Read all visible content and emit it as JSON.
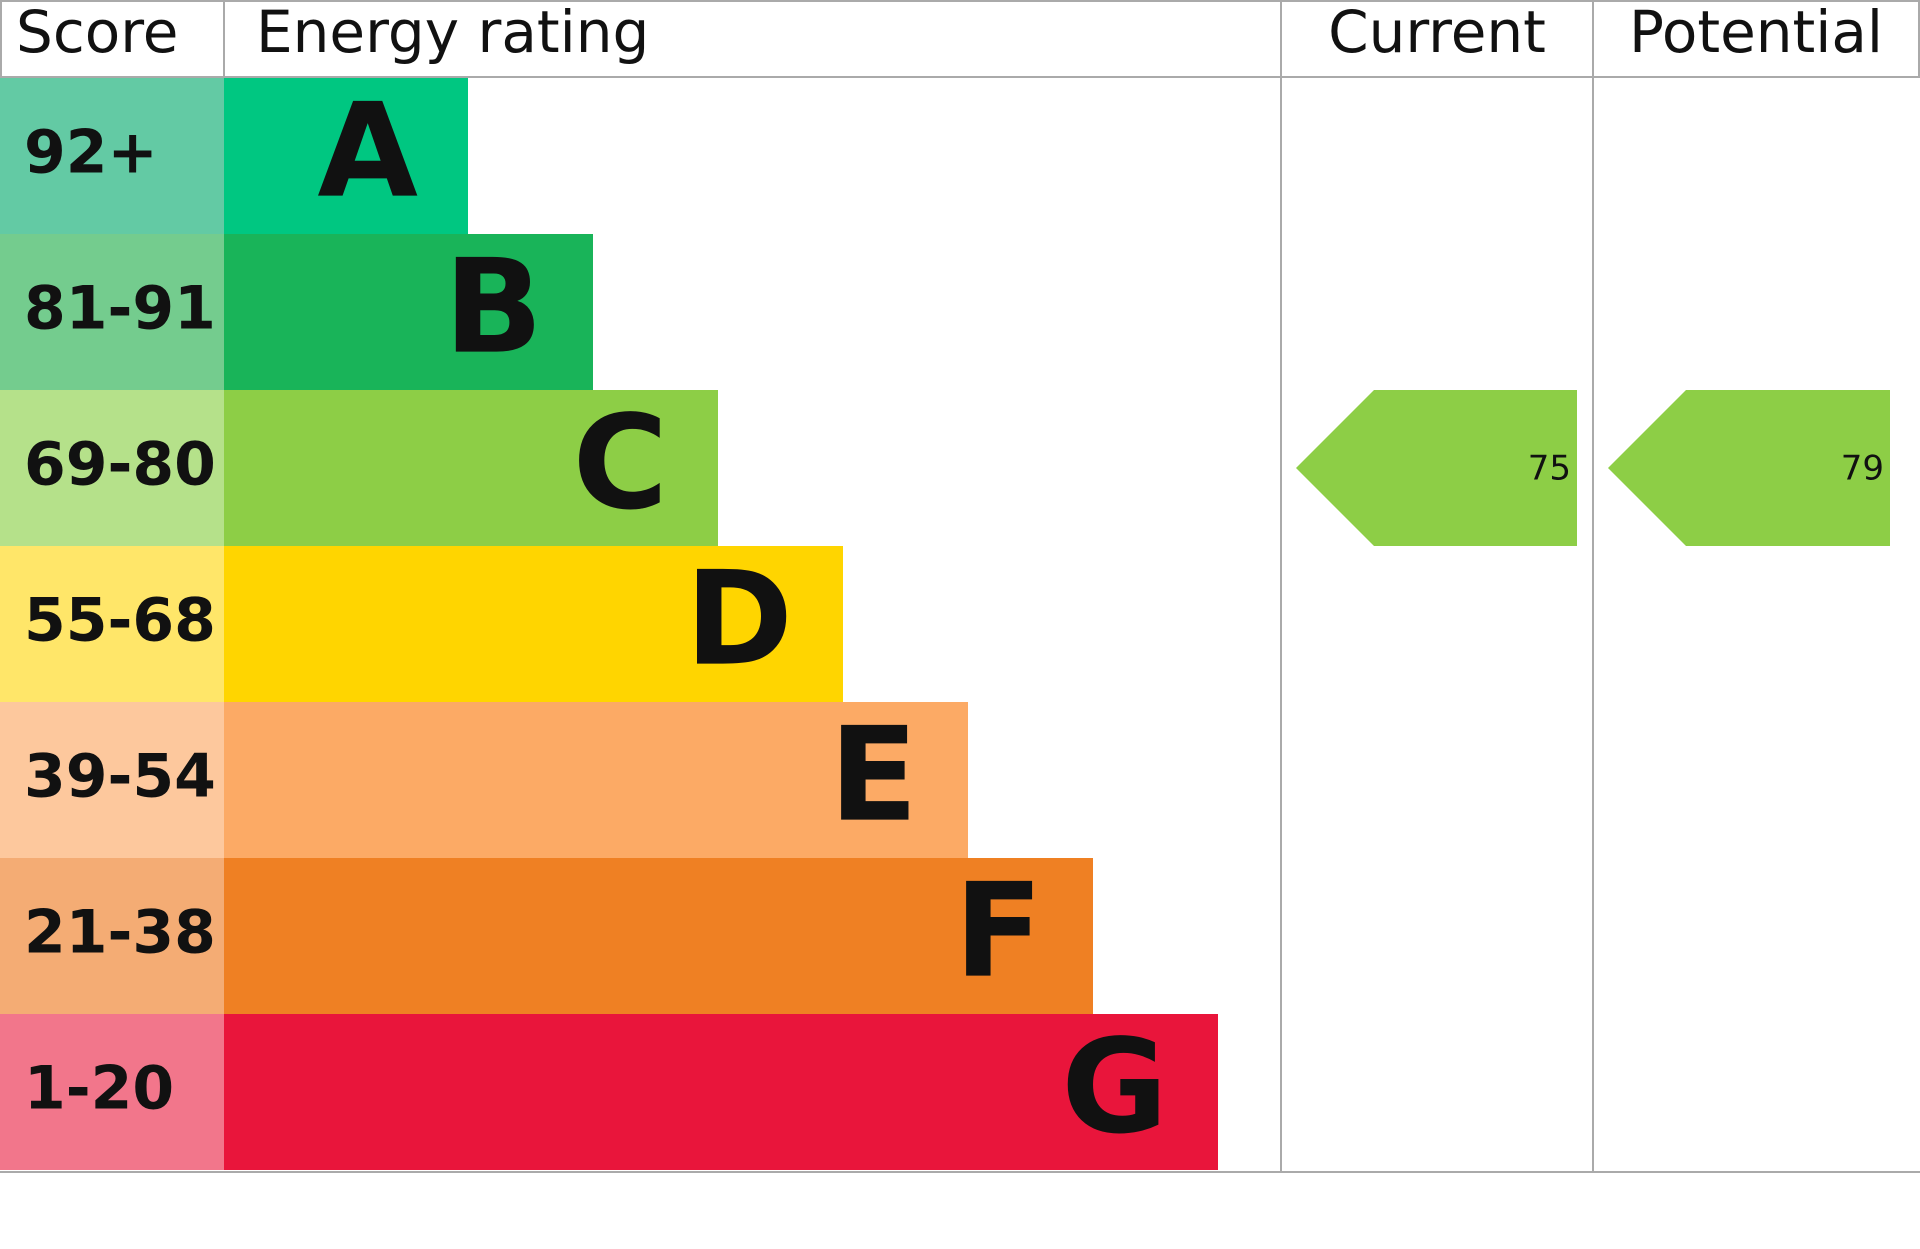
{
  "chart_data": {
    "type": "energy-rating",
    "headers": {
      "score": "Score",
      "rating": "Energy rating"
    },
    "bands": [
      {
        "range": "92+",
        "letter": "A",
        "color": "#00c781",
        "range_color": "#63caa4"
      },
      {
        "range": "81-91",
        "letter": "B",
        "color": "#19b459",
        "range_color": "#74cc8e"
      },
      {
        "range": "69-80",
        "letter": "C",
        "color": "#8dce46",
        "range_color": "#b5e18a"
      },
      {
        "range": "55-68",
        "letter": "D",
        "color": "#ffd500",
        "range_color": "#ffe669"
      },
      {
        "range": "39-54",
        "letter": "E",
        "color": "#fcaa65",
        "range_color": "#fdc89d"
      },
      {
        "range": "21-38",
        "letter": "F",
        "color": "#ef8023",
        "range_color": "#f4ac74"
      },
      {
        "range": "1-20",
        "letter": "G",
        "color": "#e9153b",
        "range_color": "#f2768b"
      }
    ],
    "series": [
      {
        "name": "Current",
        "value": 75,
        "color": "#8dce46"
      },
      {
        "name": "Potential",
        "value": 79,
        "color": "#8dce46"
      }
    ]
  }
}
